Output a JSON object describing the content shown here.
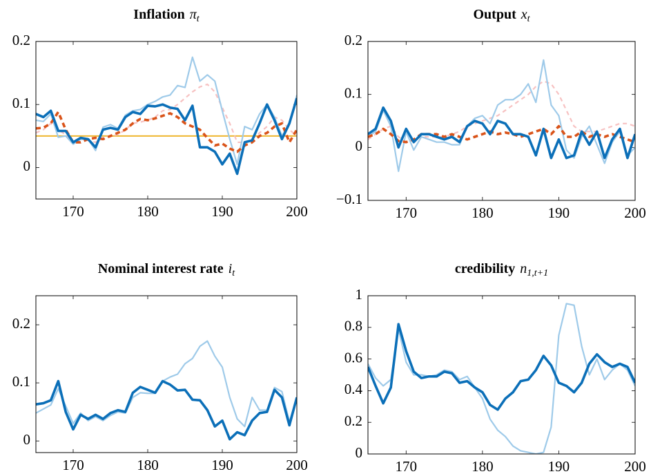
{
  "chart_data": [
    {
      "type": "line",
      "title": "Inflation",
      "title_math": "π",
      "title_sub": "t",
      "x": [
        165,
        166,
        167,
        168,
        169,
        170,
        171,
        172,
        173,
        174,
        175,
        176,
        177,
        178,
        179,
        180,
        181,
        182,
        183,
        184,
        185,
        186,
        187,
        188,
        189,
        190,
        191,
        192,
        193,
        194,
        195,
        196,
        197,
        198,
        199,
        200
      ],
      "xlim": [
        165,
        200
      ],
      "xticks": [
        170,
        180,
        190,
        200
      ],
      "ylim": [
        -0.05,
        0.2
      ],
      "yticks": [
        0,
        0.1,
        0.2
      ],
      "reference_line": {
        "value": 0.05,
        "color": "#edb120"
      },
      "series": [
        {
          "color": "#f7c1c1",
          "linestyle": "dashed",
          "weight": "normal",
          "values": [
            0.055,
            0.06,
            0.07,
            0.06,
            0.052,
            0.04,
            0.045,
            0.043,
            0.04,
            0.048,
            0.05,
            0.052,
            0.06,
            0.07,
            0.072,
            0.075,
            0.08,
            0.09,
            0.092,
            0.1,
            0.11,
            0.12,
            0.128,
            0.132,
            0.12,
            0.095,
            0.07,
            0.04,
            0.04,
            0.045,
            0.055,
            0.065,
            0.08,
            0.075,
            0.06,
            0.05
          ]
        },
        {
          "color": "#9ecae9",
          "linestyle": "solid",
          "weight": "normal",
          "values": [
            0.075,
            0.073,
            0.085,
            0.048,
            0.05,
            0.037,
            0.045,
            0.045,
            0.027,
            0.064,
            0.068,
            0.062,
            0.083,
            0.09,
            0.092,
            0.1,
            0.105,
            0.112,
            0.115,
            0.13,
            0.127,
            0.175,
            0.137,
            0.147,
            0.137,
            0.09,
            0.045,
            0.005,
            0.065,
            0.06,
            0.085,
            0.1,
            0.08,
            0.05,
            0.07,
            0.115
          ]
        },
        {
          "color": "#d95319",
          "linestyle": "dashed",
          "weight": "bold",
          "values": [
            0.062,
            0.063,
            0.07,
            0.088,
            0.06,
            0.04,
            0.04,
            0.045,
            0.047,
            0.045,
            0.05,
            0.055,
            0.06,
            0.07,
            0.077,
            0.075,
            0.078,
            0.082,
            0.086,
            0.08,
            0.07,
            0.065,
            0.06,
            0.047,
            0.035,
            0.038,
            0.03,
            0.025,
            0.035,
            0.04,
            0.05,
            0.055,
            0.065,
            0.07,
            0.04,
            0.06
          ]
        },
        {
          "color": "#0b6fb8",
          "linestyle": "solid",
          "weight": "bold",
          "values": [
            0.085,
            0.08,
            0.09,
            0.058,
            0.058,
            0.04,
            0.047,
            0.045,
            0.032,
            0.06,
            0.063,
            0.06,
            0.08,
            0.088,
            0.085,
            0.098,
            0.097,
            0.1,
            0.095,
            0.093,
            0.075,
            0.098,
            0.032,
            0.032,
            0.025,
            0.005,
            0.022,
            -0.01,
            0.04,
            0.043,
            0.07,
            0.1,
            0.075,
            0.045,
            0.07,
            0.11
          ]
        }
      ]
    },
    {
      "type": "line",
      "title": "Output",
      "title_math": "x",
      "title_sub": "t",
      "x": [
        165,
        166,
        167,
        168,
        169,
        170,
        171,
        172,
        173,
        174,
        175,
        176,
        177,
        178,
        179,
        180,
        181,
        182,
        183,
        184,
        185,
        186,
        187,
        188,
        189,
        190,
        191,
        192,
        193,
        194,
        195,
        196,
        197,
        198,
        199,
        200
      ],
      "xlim": [
        165,
        200
      ],
      "xticks": [
        170,
        180,
        190,
        200
      ],
      "ylim": [
        -0.1,
        0.2
      ],
      "yticks": [
        {
          "value": -0.1,
          "label": "−0.1"
        },
        0,
        0.1,
        0.2
      ],
      "series": [
        {
          "color": "#f7c1c1",
          "linestyle": "dashed",
          "weight": "normal",
          "values": [
            0.015,
            0.025,
            0.035,
            0.04,
            0.02,
            0.01,
            0.015,
            0.02,
            0.02,
            0.02,
            0.02,
            0.025,
            0.03,
            0.04,
            0.045,
            0.05,
            0.055,
            0.06,
            0.07,
            0.08,
            0.09,
            0.1,
            0.115,
            0.125,
            0.12,
            0.1,
            0.07,
            0.04,
            0.03,
            0.03,
            0.03,
            0.035,
            0.04,
            0.045,
            0.045,
            0.04
          ]
        },
        {
          "color": "#9ecae9",
          "linestyle": "solid",
          "weight": "normal",
          "values": [
            0.02,
            0.03,
            0.07,
            0.04,
            -0.045,
            0.03,
            -0.005,
            0.02,
            0.015,
            0.01,
            0.01,
            0.005,
            0.005,
            0.04,
            0.055,
            0.06,
            0.045,
            0.08,
            0.09,
            0.09,
            0.1,
            0.12,
            0.085,
            0.165,
            0.08,
            0.06,
            -0.005,
            -0.02,
            0.02,
            0.04,
            0.005,
            -0.03,
            0.01,
            0.03,
            -0.015,
            0.0
          ]
        },
        {
          "color": "#d95319",
          "linestyle": "dashed",
          "weight": "bold",
          "values": [
            0.02,
            0.025,
            0.035,
            0.025,
            0.012,
            0.01,
            0.015,
            0.025,
            0.025,
            0.025,
            0.02,
            0.025,
            0.02,
            0.015,
            0.02,
            0.025,
            0.03,
            0.025,
            0.028,
            0.025,
            0.02,
            0.025,
            0.03,
            0.035,
            0.025,
            0.04,
            0.02,
            0.02,
            0.03,
            0.02,
            0.025,
            0.02,
            0.025,
            0.02,
            0.015,
            0.01
          ]
        },
        {
          "color": "#0b6fb8",
          "linestyle": "solid",
          "weight": "bold",
          "values": [
            0.025,
            0.035,
            0.075,
            0.05,
            0.0,
            0.035,
            0.01,
            0.025,
            0.025,
            0.02,
            0.015,
            0.02,
            0.01,
            0.04,
            0.05,
            0.045,
            0.025,
            0.05,
            0.045,
            0.025,
            0.025,
            0.02,
            -0.015,
            0.035,
            -0.02,
            0.015,
            -0.02,
            -0.015,
            0.03,
            0.005,
            0.03,
            -0.02,
            0.015,
            0.035,
            -0.02,
            0.025
          ]
        }
      ]
    },
    {
      "type": "line",
      "title": "Nominal interest rate",
      "title_math": "i",
      "title_sub": "t",
      "x": [
        165,
        166,
        167,
        168,
        169,
        170,
        171,
        172,
        173,
        174,
        175,
        176,
        177,
        178,
        179,
        180,
        181,
        182,
        183,
        184,
        185,
        186,
        187,
        188,
        189,
        190,
        191,
        192,
        193,
        194,
        195,
        196,
        197,
        198,
        199,
        200
      ],
      "xlim": [
        165,
        200
      ],
      "xticks": [
        170,
        180,
        190,
        200
      ],
      "ylim": [
        -0.02,
        0.25
      ],
      "yticks": [
        0,
        0.1,
        0.2
      ],
      "series": [
        {
          "color": "#9ecae9",
          "linestyle": "solid",
          "weight": "normal",
          "values": [
            0.048,
            0.055,
            0.062,
            0.09,
            0.06,
            0.03,
            0.048,
            0.035,
            0.042,
            0.035,
            0.044,
            0.05,
            0.048,
            0.075,
            0.083,
            0.082,
            0.082,
            0.103,
            0.11,
            0.115,
            0.133,
            0.142,
            0.163,
            0.172,
            0.146,
            0.127,
            0.075,
            0.038,
            0.025,
            0.075,
            0.053,
            0.053,
            0.092,
            0.085,
            0.033,
            0.075
          ]
        },
        {
          "color": "#0b6fb8",
          "linestyle": "solid",
          "weight": "bold",
          "values": [
            0.063,
            0.065,
            0.07,
            0.103,
            0.05,
            0.02,
            0.045,
            0.038,
            0.045,
            0.038,
            0.048,
            0.053,
            0.05,
            0.083,
            0.093,
            0.088,
            0.083,
            0.103,
            0.097,
            0.087,
            0.088,
            0.071,
            0.07,
            0.053,
            0.025,
            0.035,
            0.003,
            0.015,
            0.01,
            0.035,
            0.048,
            0.05,
            0.088,
            0.075,
            0.027,
            0.075
          ]
        }
      ]
    },
    {
      "type": "line",
      "title": "credibility",
      "title_math": "n",
      "title_sub": "1,t+1",
      "x": [
        165,
        166,
        167,
        168,
        169,
        170,
        171,
        172,
        173,
        174,
        175,
        176,
        177,
        178,
        179,
        180,
        181,
        182,
        183,
        184,
        185,
        186,
        187,
        188,
        189,
        190,
        191,
        192,
        193,
        194,
        195,
        196,
        197,
        198,
        199,
        200
      ],
      "xlim": [
        165,
        200
      ],
      "xticks": [
        170,
        180,
        190,
        200
      ],
      "ylim": [
        0,
        1
      ],
      "yticks": [
        0,
        0.2,
        0.4,
        0.6,
        0.8,
        1
      ],
      "series": [
        {
          "color": "#9ecae9",
          "linestyle": "solid",
          "weight": "normal",
          "values": [
            0.57,
            0.48,
            0.43,
            0.47,
            0.79,
            0.58,
            0.5,
            0.5,
            0.49,
            0.5,
            0.53,
            0.52,
            0.47,
            0.49,
            0.42,
            0.35,
            0.22,
            0.15,
            0.11,
            0.05,
            0.02,
            0.01,
            0.0,
            0.01,
            0.17,
            0.75,
            0.95,
            0.94,
            0.68,
            0.5,
            0.6,
            0.47,
            0.53,
            0.57,
            0.53,
            0.43
          ]
        },
        {
          "color": "#0b6fb8",
          "linestyle": "solid",
          "weight": "bold",
          "values": [
            0.55,
            0.43,
            0.32,
            0.42,
            0.82,
            0.65,
            0.52,
            0.48,
            0.49,
            0.49,
            0.52,
            0.51,
            0.45,
            0.46,
            0.42,
            0.39,
            0.31,
            0.28,
            0.35,
            0.39,
            0.46,
            0.47,
            0.53,
            0.62,
            0.56,
            0.45,
            0.43,
            0.39,
            0.45,
            0.57,
            0.63,
            0.58,
            0.55,
            0.57,
            0.55,
            0.45
          ]
        }
      ]
    }
  ]
}
